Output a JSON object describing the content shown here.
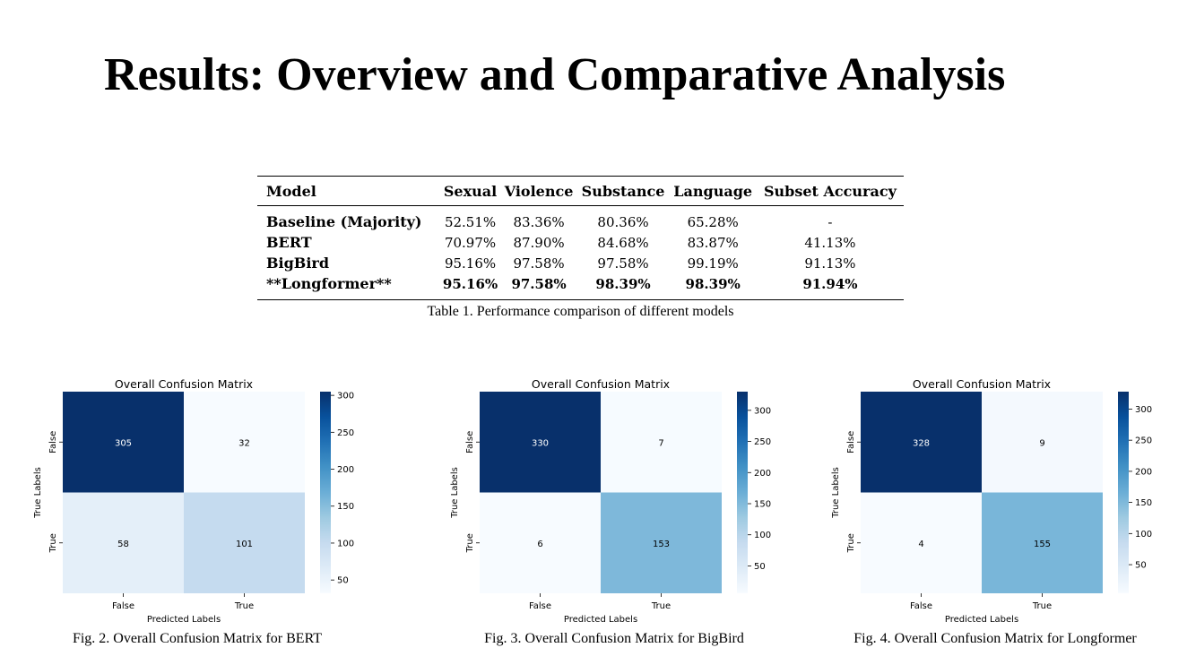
{
  "title": "Results: Overview and Comparative Analysis",
  "table": {
    "headers": [
      "Model",
      "Sexual",
      "Violence",
      "Substance",
      "Language",
      "Subset Accuracy"
    ],
    "rows": [
      {
        "model": "Baseline (Majority)",
        "values": [
          "52.51%",
          "83.36%",
          "80.36%",
          "65.28%",
          "-"
        ],
        "bold": false
      },
      {
        "model": "BERT",
        "values": [
          "70.97%",
          "87.90%",
          "84.68%",
          "83.87%",
          "41.13%"
        ],
        "bold": false
      },
      {
        "model": "BigBird",
        "values": [
          "95.16%",
          "97.58%",
          "97.58%",
          "99.19%",
          "91.13%"
        ],
        "bold": false
      },
      {
        "model": "**Longformer**",
        "values": [
          "95.16%",
          "97.58%",
          "98.39%",
          "98.39%",
          "91.94%"
        ],
        "bold": true
      }
    ],
    "caption": "Table 1. Performance comparison of different models"
  },
  "colors": {
    "low": "#f7fbff",
    "high": "#08306b"
  },
  "chart_data": [
    {
      "type": "heatmap",
      "title": "Overall Confusion Matrix",
      "xlabel": "Predicted Labels",
      "ylabel": "True Labels",
      "x_categories": [
        "False",
        "True"
      ],
      "y_categories": [
        "False",
        "True"
      ],
      "values": [
        [
          305,
          32
        ],
        [
          58,
          101
        ]
      ],
      "colorbar": {
        "min": 32,
        "max": 305,
        "ticks": [
          50,
          100,
          150,
          200,
          250,
          300
        ]
      },
      "colormap": "Blues",
      "caption": "Fig. 2. Overall Confusion Matrix for BERT"
    },
    {
      "type": "heatmap",
      "title": "Overall Confusion Matrix",
      "xlabel": "Predicted Labels",
      "ylabel": "True Labels",
      "x_categories": [
        "False",
        "True"
      ],
      "y_categories": [
        "False",
        "True"
      ],
      "values": [
        [
          330,
          7
        ],
        [
          6,
          153
        ]
      ],
      "colorbar": {
        "min": 6,
        "max": 330,
        "ticks": [
          50,
          100,
          150,
          200,
          250,
          300
        ]
      },
      "colormap": "Blues",
      "caption": "Fig. 3. Overall Confusion Matrix for BigBird"
    },
    {
      "type": "heatmap",
      "title": "Overall Confusion Matrix",
      "xlabel": "Predicted Labels",
      "ylabel": "True Labels",
      "x_categories": [
        "False",
        "True"
      ],
      "y_categories": [
        "False",
        "True"
      ],
      "values": [
        [
          328,
          9
        ],
        [
          4,
          155
        ]
      ],
      "colorbar": {
        "min": 4,
        "max": 328,
        "ticks": [
          50,
          100,
          150,
          200,
          250,
          300
        ]
      },
      "colormap": "Blues",
      "caption": "Fig. 4. Overall Confusion Matrix for Longformer"
    }
  ]
}
